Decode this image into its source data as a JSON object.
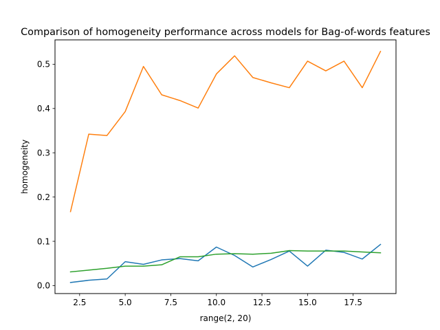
{
  "chart_data": {
    "type": "line",
    "title": "Comparison of homogeneity performance across models for Bag-of-words features",
    "xlabel": "range(2, 20)",
    "ylabel": "homogeneity",
    "x": [
      2,
      3,
      4,
      5,
      6,
      7,
      8,
      9,
      10,
      11,
      12,
      13,
      14,
      15,
      16,
      17,
      18,
      19
    ],
    "xlim": [
      1.15,
      19.85
    ],
    "ylim": [
      -0.018,
      0.555
    ],
    "xticks": [
      2.5,
      5.0,
      7.5,
      10.0,
      12.5,
      15.0,
      17.5
    ],
    "xtick_labels": [
      "2.5",
      "5.0",
      "7.5",
      "10.0",
      "12.5",
      "15.0",
      "17.5"
    ],
    "yticks": [
      0.0,
      0.1,
      0.2,
      0.3,
      0.4,
      0.5
    ],
    "ytick_labels": [
      "0.0",
      "0.1",
      "0.2",
      "0.3",
      "0.4",
      "0.5"
    ],
    "grid": false,
    "legend": "none",
    "series": [
      {
        "color": "#1f77b4",
        "values": [
          0.007,
          0.012,
          0.015,
          0.054,
          0.048,
          0.058,
          0.061,
          0.056,
          0.087,
          0.068,
          0.042,
          0.059,
          0.078,
          0.044,
          0.08,
          0.075,
          0.06,
          0.093
        ]
      },
      {
        "color": "#ff7f0e",
        "values": [
          0.167,
          0.342,
          0.339,
          0.393,
          0.495,
          0.431,
          0.418,
          0.401,
          0.478,
          0.519,
          0.47,
          0.458,
          0.447,
          0.507,
          0.485,
          0.507,
          0.447,
          0.529
        ]
      },
      {
        "color": "#2ca02c",
        "values": [
          0.031,
          0.035,
          0.039,
          0.044,
          0.044,
          0.047,
          0.065,
          0.065,
          0.071,
          0.072,
          0.071,
          0.073,
          0.079,
          0.078,
          0.078,
          0.078,
          0.076,
          0.074
        ]
      }
    ]
  }
}
